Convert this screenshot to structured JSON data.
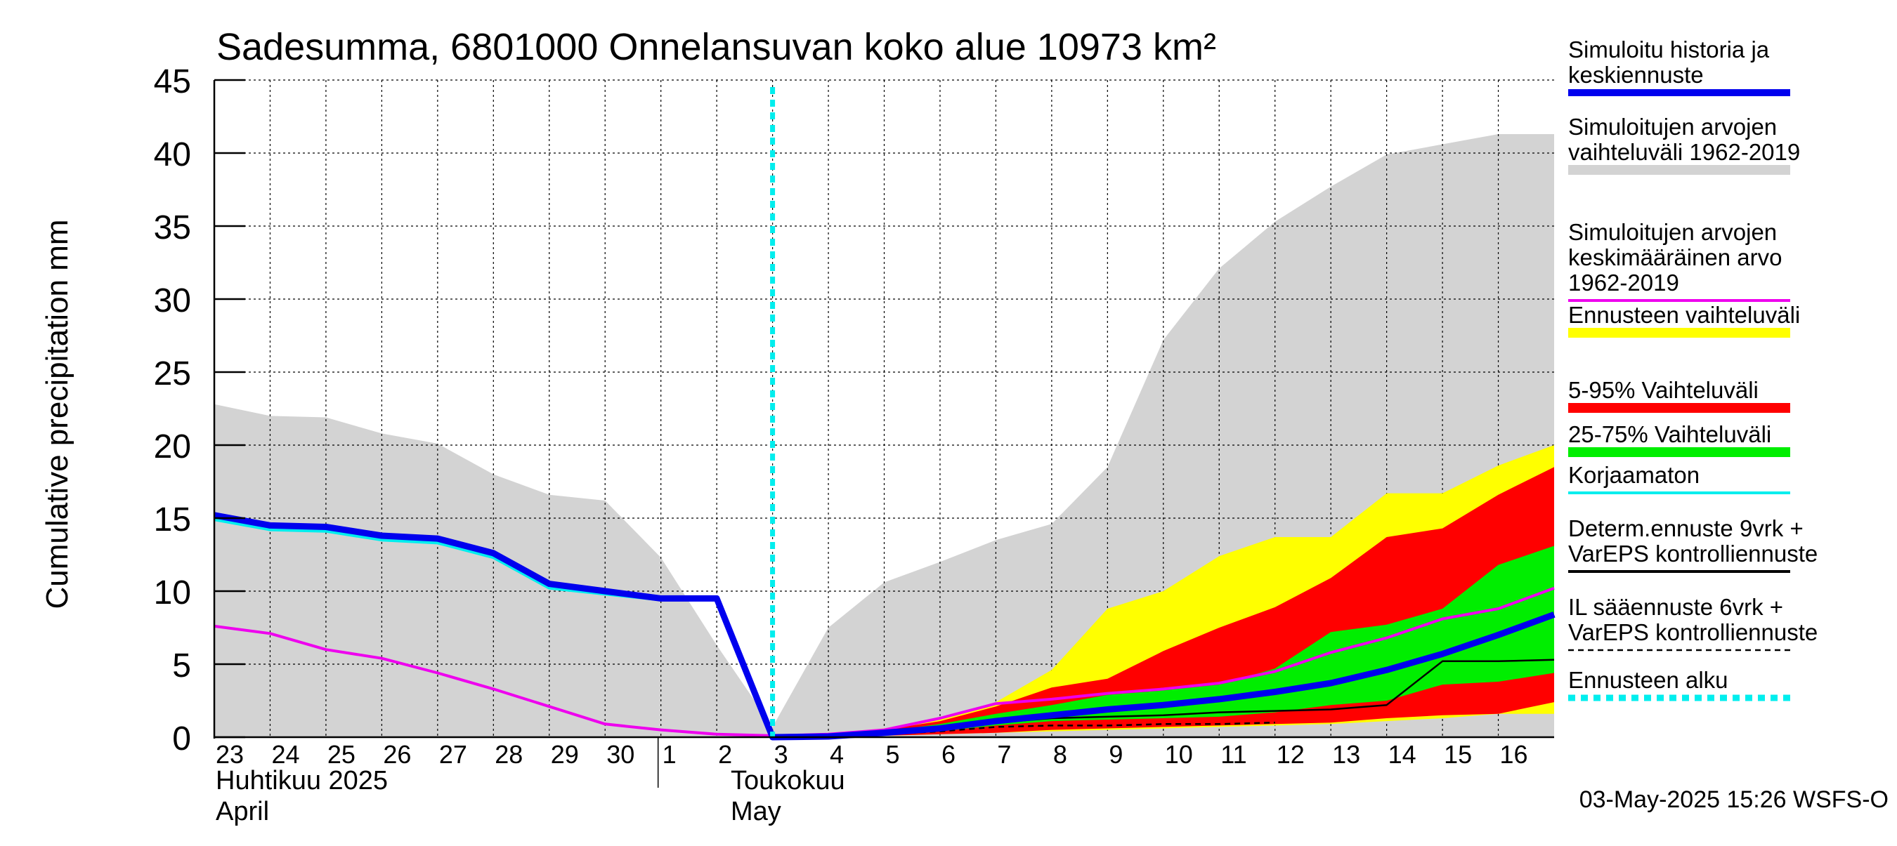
{
  "chart_data": {
    "type": "area",
    "title": "Sadesumma, 6801000 Onnelansuvan koko alue 10973 km²",
    "ylabel": "Cumulative precipitation   mm",
    "ylim": [
      0,
      45
    ],
    "yticks": [
      0,
      5,
      10,
      15,
      20,
      25,
      30,
      35,
      40,
      45
    ],
    "xlim": [
      0,
      24
    ],
    "x_tick_labels": [
      "23",
      "24",
      "25",
      "26",
      "27",
      "28",
      "29",
      "30",
      "1",
      "2",
      "3",
      "4",
      "5",
      "6",
      "7",
      "8",
      "9",
      "10",
      "11",
      "12",
      "13",
      "14",
      "15",
      "16"
    ],
    "month_labels": [
      {
        "line1": "Huhtikuu  2025",
        "line2": "April"
      },
      {
        "line1": "Toukokuu",
        "line2": "May"
      }
    ],
    "forecast_start_x": 10,
    "timestamp": "03-May-2025 15:26 WSFS-O",
    "legend": [
      {
        "label": "Simuloitu historia ja\nkeskiennuste",
        "color": "#0000ee",
        "style": "thick"
      },
      {
        "label": "Simuloitujen arvojen\nvaihteluväli 1962-2019",
        "color": "#d3d3d3",
        "style": "band"
      },
      {
        "label": "Simuloitujen arvojen\nkeskimääräinen arvo\n   1962-2019",
        "color": "#ee00ee",
        "style": "line"
      },
      {
        "label": "Ennusteen vaihteluväli",
        "color": "#ffff00",
        "style": "band"
      },
      {
        "label": "5-95% Vaihteluväli",
        "color": "#ff0000",
        "style": "band"
      },
      {
        "label": "25-75% Vaihteluväli",
        "color": "#00ee00",
        "style": "band"
      },
      {
        "label": "Korjaamaton",
        "color": "#00eeee",
        "style": "line"
      },
      {
        "label": "Determ.ennuste 9vrk +\nVarEPS kontrolliennuste",
        "color": "#000000",
        "style": "line"
      },
      {
        "label": "IL sääennuste 6vrk  +\n  VarEPS kontrolliennuste",
        "color": "#000000",
        "style": "dashed"
      },
      {
        "label": "Ennusteen alku",
        "color": "#00eeee",
        "style": "dotted"
      }
    ],
    "x": [
      0,
      1,
      2,
      3,
      4,
      5,
      6,
      7,
      8,
      9,
      10,
      11,
      12,
      13,
      14,
      15,
      16,
      17,
      18,
      19,
      20,
      21,
      22,
      23,
      24
    ],
    "series": [
      {
        "name": "Simuloitujen arvojen vaihteluväli 1962-2019 (max)",
        "values": [
          22.8,
          22.0,
          21.9,
          20.8,
          20.1,
          18.0,
          16.6,
          16.2,
          12.3,
          6.3,
          0.7,
          7.5,
          10.6,
          12.0,
          13.5,
          14.6,
          18.5,
          27.2,
          32.1,
          35.3,
          37.7,
          39.9,
          40.6,
          41.3,
          41.3
        ]
      },
      {
        "name": "Simuloitujen arvojen keskimääräinen arvo 1962-2019",
        "values": [
          7.6,
          7.1,
          6.0,
          5.4,
          4.4,
          3.3,
          2.1,
          0.9,
          0.5,
          0.2,
          0.1,
          0.2,
          0.5,
          1.3,
          2.3,
          2.6,
          3.0,
          3.3,
          3.7,
          4.5,
          5.8,
          6.8,
          8.1,
          8.8,
          10.2
        ]
      },
      {
        "name": "Simuloitu historia ja keskiennuste",
        "values": [
          15.2,
          14.5,
          14.4,
          13.8,
          13.6,
          12.6,
          10.5,
          10.0,
          9.5,
          9.5,
          0.0,
          0.05,
          0.3,
          0.6,
          1.1,
          1.5,
          1.9,
          2.2,
          2.6,
          3.1,
          3.7,
          4.6,
          5.7,
          7.0,
          8.4
        ]
      },
      {
        "name": "Korjaamaton",
        "values": [
          14.9,
          14.2,
          14.1,
          13.5,
          13.3,
          12.3,
          10.2,
          9.8,
          9.4,
          9.4,
          0.0,
          0.05,
          0.3,
          0.6,
          1.0,
          1.4,
          1.8,
          2.1,
          2.5,
          3.0,
          3.6,
          4.5,
          5.6,
          6.9,
          8.3
        ]
      },
      {
        "name": "Ennusteen vaihteluväli (max)",
        "values": [
          null,
          null,
          null,
          null,
          null,
          null,
          null,
          null,
          null,
          null,
          0.0,
          0.2,
          0.6,
          1.3,
          2.4,
          4.6,
          8.8,
          10.0,
          12.4,
          13.7,
          13.7,
          16.7,
          16.7,
          18.6,
          20.0
        ]
      },
      {
        "name": "5-95% Vaihteluväli (max)",
        "values": [
          null,
          null,
          null,
          null,
          null,
          null,
          null,
          null,
          null,
          null,
          0.0,
          0.1,
          0.5,
          1.1,
          2.1,
          3.4,
          4.0,
          5.9,
          7.5,
          8.9,
          10.9,
          13.7,
          14.3,
          16.6,
          18.5
        ]
      },
      {
        "name": "25-75% Vaihteluväli (max)",
        "values": [
          null,
          null,
          null,
          null,
          null,
          null,
          null,
          null,
          null,
          null,
          0.0,
          0.1,
          0.4,
          0.9,
          1.6,
          2.2,
          2.9,
          3.2,
          3.6,
          4.7,
          7.2,
          7.7,
          8.8,
          11.8,
          13.1
        ]
      },
      {
        "name": "25-75% Vaihteluväli (min)",
        "values": [
          null,
          null,
          null,
          null,
          null,
          null,
          null,
          null,
          null,
          null,
          0.0,
          0.0,
          0.2,
          0.4,
          0.8,
          1.1,
          1.2,
          1.3,
          1.4,
          1.7,
          2.2,
          2.5,
          3.6,
          3.8,
          4.4
        ]
      },
      {
        "name": "5-95% Vaihteluväli (min)",
        "values": [
          null,
          null,
          null,
          null,
          null,
          null,
          null,
          null,
          null,
          null,
          0.0,
          0.0,
          0.1,
          0.2,
          0.3,
          0.5,
          0.6,
          0.7,
          0.8,
          0.9,
          1.0,
          1.3,
          1.5,
          1.6,
          2.4
        ]
      },
      {
        "name": "Ennusteen vaihteluväli (min)",
        "values": [
          null,
          null,
          null,
          null,
          null,
          null,
          null,
          null,
          null,
          null,
          0.0,
          0.0,
          0.1,
          0.2,
          0.3,
          0.4,
          0.5,
          0.6,
          0.7,
          0.8,
          0.9,
          1.1,
          1.3,
          1.6,
          1.6
        ]
      },
      {
        "name": "Determ.ennuste 9vrk + VarEPS kontrolliennuste",
        "values": [
          null,
          null,
          null,
          null,
          null,
          null,
          null,
          null,
          null,
          null,
          0.0,
          0.05,
          0.3,
          0.6,
          1.0,
          1.3,
          1.4,
          1.5,
          1.7,
          1.8,
          1.9,
          2.2,
          5.2,
          5.2,
          5.3
        ]
      },
      {
        "name": "IL sääennuste 6vrk + VarEPS kontrolliennuste",
        "values": [
          null,
          null,
          null,
          null,
          null,
          null,
          null,
          null,
          null,
          null,
          0.0,
          0.05,
          0.2,
          0.4,
          0.7,
          0.8,
          0.8,
          0.9,
          0.9,
          1.0,
          null,
          null,
          null,
          null,
          null
        ]
      }
    ]
  }
}
